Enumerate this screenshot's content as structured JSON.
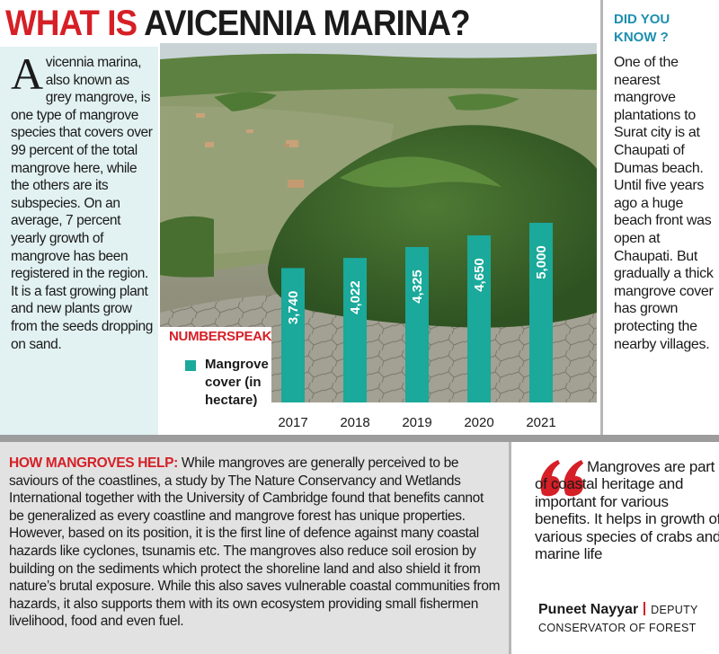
{
  "headline": {
    "part1": "WHAT IS ",
    "part2": "AVICENNIA MARINA?"
  },
  "intro": {
    "dropcap": "A",
    "text": "vicennia marina, also known as grey mangrove, is one type of mangrove species that covers over 99 percent of the total mangrove here, while the others are its subspecies. On an average, 7 percent yearly growth of mangrove has been registered in the region. It is a fast growing plant and new plants grow from the seeds dropping on sand."
  },
  "chart_data": {
    "type": "bar",
    "title": "NUMBERSPEAK",
    "categories": [
      "2017",
      "2018",
      "2019",
      "2020",
      "2021"
    ],
    "series": [
      {
        "name": "Mangrove cover (in hectare)",
        "values": [
          3740,
          4022,
          4325,
          4650,
          5000
        ],
        "labels": [
          "3,740",
          "4,022",
          "4,325",
          "4,650",
          "5,000"
        ]
      }
    ],
    "bar_color": "#1aa99a",
    "axis": {
      "ylim": [
        0,
        5000
      ],
      "grid": false,
      "y_ticks": false
    },
    "legend": "left"
  },
  "did_you_know": {
    "title": "DID YOU KNOW ?",
    "text": "One of the nearest mangrove plantations to Surat city is at Chaupati of Dumas beach. Until five years ago a huge beach front was open at Chaupati. But gradually a thick mangrove cover has grown protecting the nearby villages."
  },
  "how_mangroves_help": {
    "heading": "HOW MANGROVES HELP:",
    "text": " While mangroves are generally perceived to be saviours of the coastlines, a study by The Nature Conservancy and Wetlands International together with the University of Cambridge found that benefits cannot be generalized as every coastline and mangrove forest has unique properties. However, based on its position, it is the first line of defence against many coastal hazards like cyclones, tsunamis etc. The mangroves also reduce soil erosion by building on the sediments which protect the shoreline land and also shield it from nature’s brutal exposure. While this also saves vulnerable coastal communities from hazards, it also supports them with its own ecosystem providing small fishermen livelihood, food and even fuel."
  },
  "quote": {
    "text": "Mangroves are part of coastal heritage and important for various benefits. It helps in growth of various species of crabs and marine life",
    "author": "Puneet Nayyar",
    "role": "DEPUTY CONSERVATOR OF FOREST"
  },
  "colors": {
    "accent_red": "#d61f26",
    "teal": "#1aa99a",
    "panel_blue": "#e2f1f2",
    "panel_grey": "#e2e2e2",
    "title_blue": "#1c8fb0"
  }
}
